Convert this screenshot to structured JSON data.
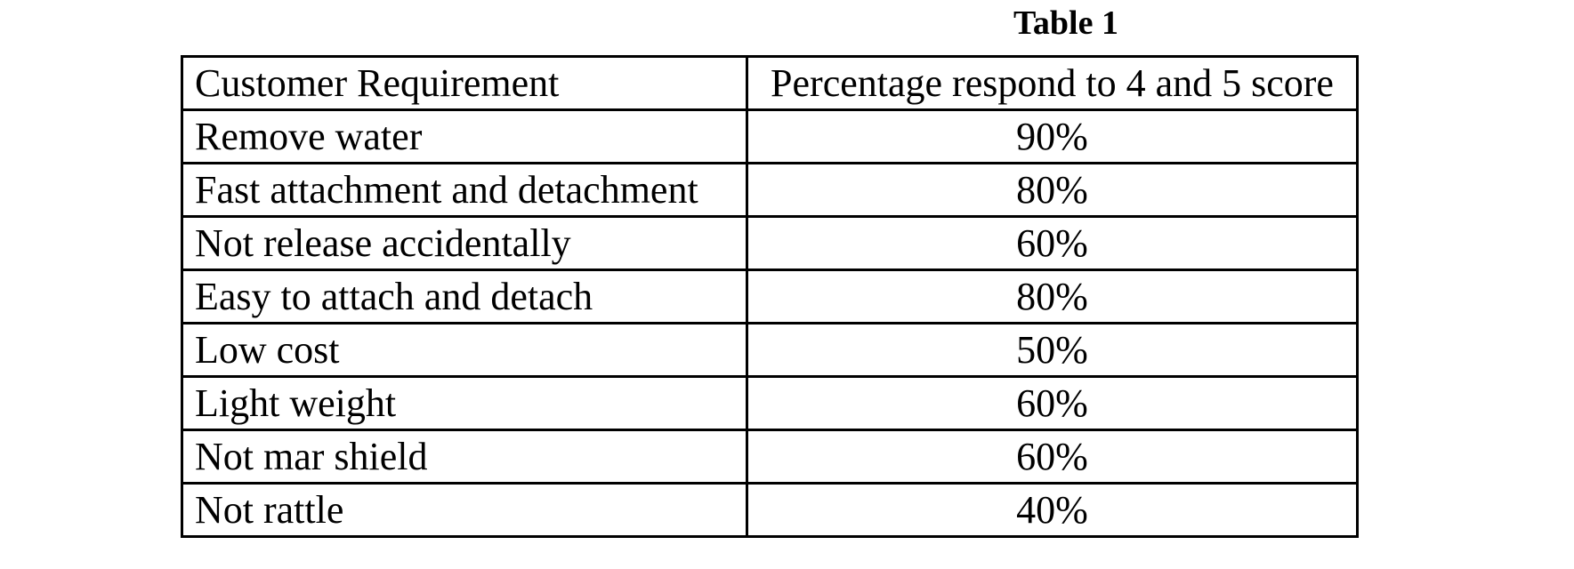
{
  "table": {
    "title": "Table 1",
    "headers": [
      "Customer Requirement",
      "Percentage respond to 4 and 5 score"
    ],
    "rows": [
      {
        "requirement": "Remove water",
        "percentage": "90%"
      },
      {
        "requirement": "Fast attachment and detachment",
        "percentage": "80%"
      },
      {
        "requirement": "Not release accidentally",
        "percentage": "60%"
      },
      {
        "requirement": "Easy to attach and detach",
        "percentage": "80%"
      },
      {
        "requirement": "Low cost",
        "percentage": "50%"
      },
      {
        "requirement": "Light weight",
        "percentage": "60%"
      },
      {
        "requirement": "Not mar shield",
        "percentage": "60%"
      },
      {
        "requirement": "Not rattle",
        "percentage": "40%"
      }
    ],
    "colors": {
      "text": "#000000",
      "border": "#000000",
      "background": "#ffffff"
    }
  }
}
